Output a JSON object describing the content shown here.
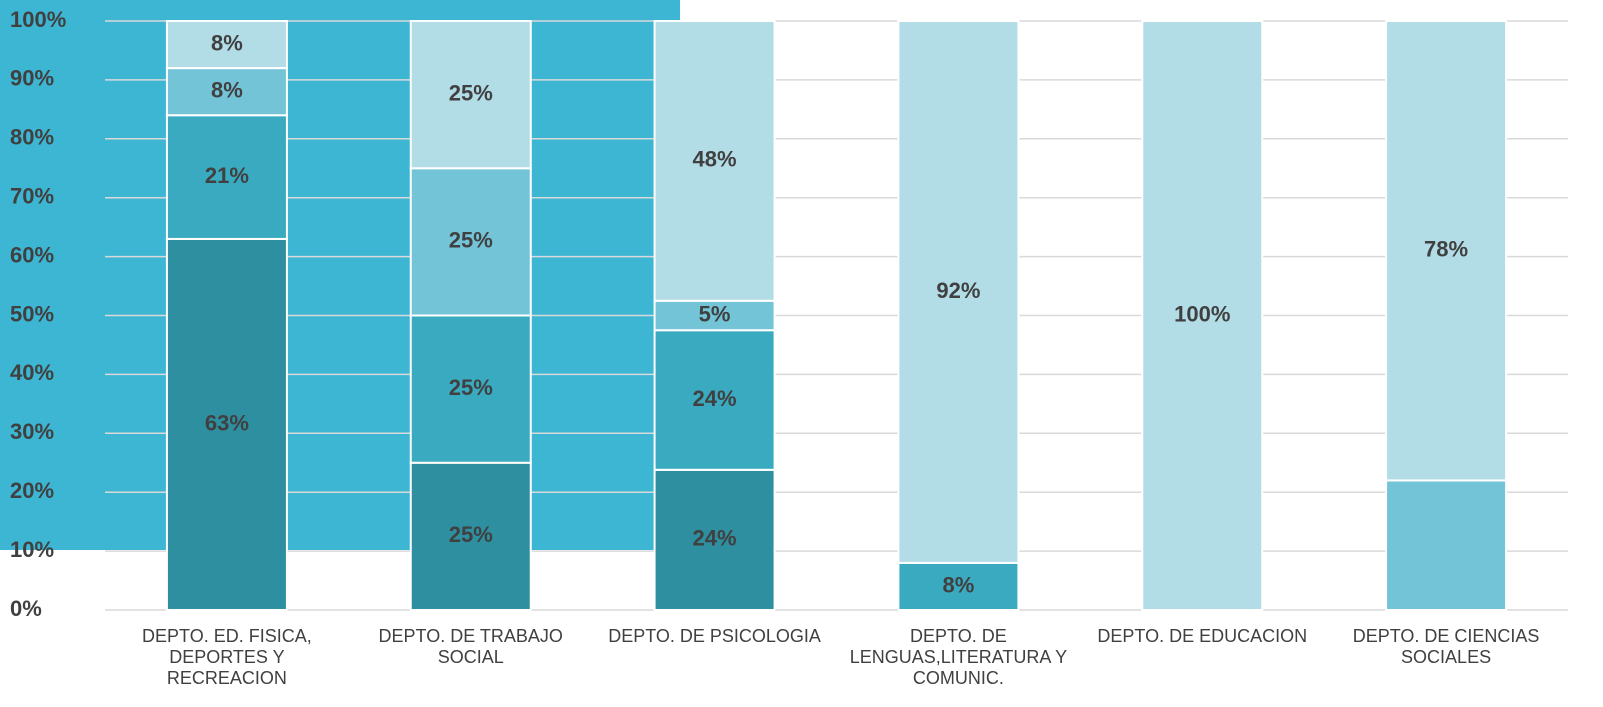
{
  "chart_data": {
    "type": "stacked_bar",
    "categories": [
      "DEPTO. ED. FISICA, DEPORTES Y RECREACION",
      "DEPTO. DE TRABAJO SOCIAL",
      "DEPTO. DE PSICOLOGIA",
      "DEPTO. DE LENGUAS,LITERATURA Y COMUNIC.",
      "DEPTO. DE EDUCACION",
      "DEPTO. DE CIENCIAS SOCIALES"
    ],
    "series": [
      {
        "color": "#2e8fa0",
        "values": [
          63,
          25,
          23.8,
          0,
          0,
          0
        ],
        "value_labels": [
          "63%",
          "25%",
          "24%",
          null,
          null,
          null
        ]
      },
      {
        "color": "#3aaac0",
        "values": [
          21,
          25,
          23.7,
          8,
          0,
          0
        ],
        "value_labels": [
          "21%",
          "25%",
          "24%",
          "8%",
          null,
          null
        ]
      },
      {
        "color": "#74c4d8",
        "values": [
          8,
          25,
          5,
          0,
          0,
          22
        ],
        "value_labels": [
          "8%",
          "25%",
          "5%",
          null,
          null,
          null
        ]
      },
      {
        "color": "#b2dce6",
        "values": [
          8,
          25,
          47.5,
          92,
          100,
          78
        ],
        "value_labels": [
          "8%",
          "25%",
          "48%",
          "92%",
          "100%",
          "78%"
        ]
      }
    ],
    "ylim": [
      0,
      100
    ],
    "yticks": [
      {
        "value": 0,
        "label": "0%"
      },
      {
        "value": 10,
        "label": "10%"
      },
      {
        "value": 20,
        "label": "20%"
      },
      {
        "value": 30,
        "label": "30%"
      },
      {
        "value": 40,
        "label": "40%"
      },
      {
        "value": 50,
        "label": "50%"
      },
      {
        "value": 60,
        "label": "60%"
      },
      {
        "value": 70,
        "label": "70%"
      },
      {
        "value": 80,
        "label": "80%"
      },
      {
        "value": 90,
        "label": "90%"
      },
      {
        "value": 100,
        "label": "100%"
      }
    ],
    "grid": true
  }
}
